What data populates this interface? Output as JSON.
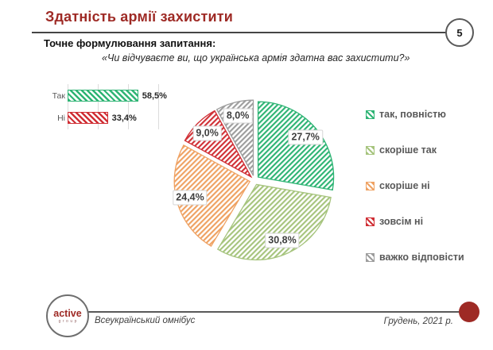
{
  "header": {
    "title": "Здатність армії захистити",
    "page_number": "5",
    "accent_color": "#9e2a25"
  },
  "question": {
    "label": "Точне формулювання запитання:",
    "text": "«Чи відчуваєте ви, що українська армія здатна вас захистити?»"
  },
  "chart_data": [
    {
      "type": "bar",
      "orientation": "horizontal",
      "title": "",
      "categories": [
        "Так",
        "Ні"
      ],
      "values": [
        58.5,
        33.4
      ],
      "value_labels": [
        "58,5%",
        "33,4%"
      ],
      "colors": [
        "#2eb474",
        "#d02f35"
      ],
      "hatch": "diagonal",
      "xlim": [
        0,
        75
      ],
      "grid": true
    },
    {
      "type": "pie",
      "title": "",
      "labels": [
        "так, повністю",
        "скоріше так",
        "скоріше ні",
        "зовсім ні",
        "важко відповісти"
      ],
      "values": [
        27.7,
        30.8,
        24.4,
        9.0,
        8.0
      ],
      "value_labels": [
        "27,7%",
        "30,8%",
        "24,4%",
        "9,0%",
        "8,0%"
      ],
      "colors": [
        "#2eb474",
        "#a6c47d",
        "#efa263",
        "#d02f35",
        "#9d9d9d"
      ],
      "hatch": "diagonal",
      "exploded": true,
      "start_angle_deg": 0,
      "direction": "clockwise",
      "legend_position": "right"
    }
  ],
  "footer": {
    "logo_primary": "active",
    "logo_secondary": "group",
    "left_text": "Всеукраїнський омнібус",
    "right_text": "Грудень, 2021 р.",
    "accent_color": "#9e2a25"
  }
}
